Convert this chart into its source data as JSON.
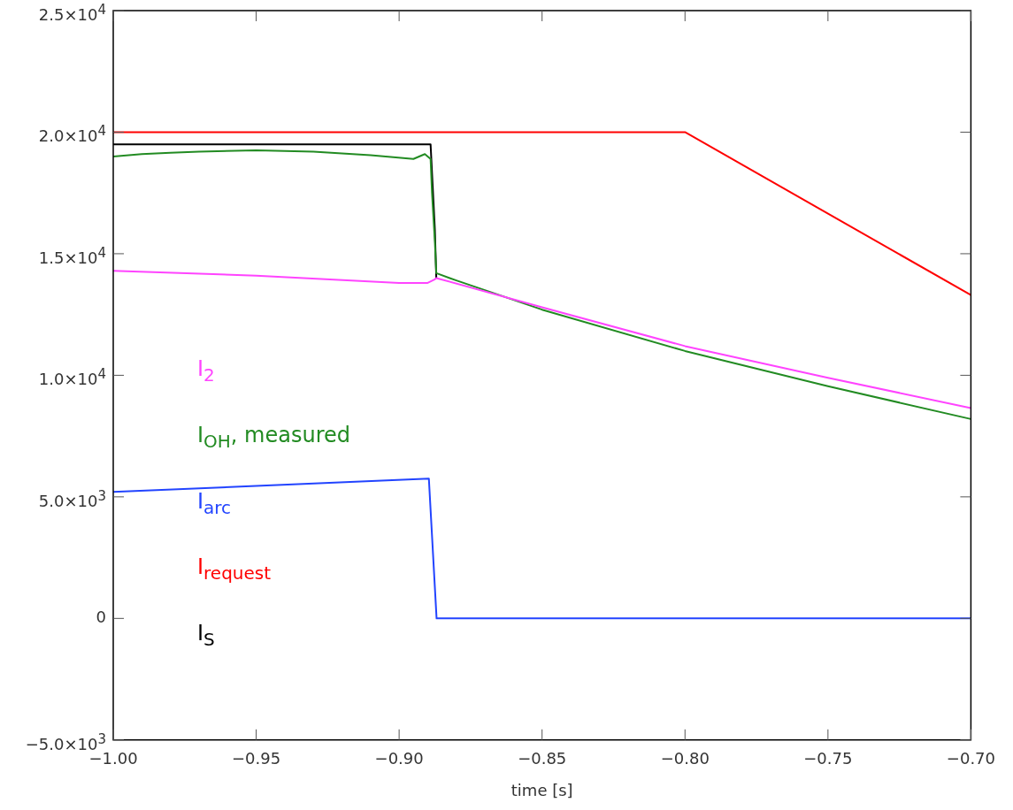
{
  "chart_data": {
    "type": "line",
    "xlabel": "time [s]",
    "legend": "left",
    "marker": "none",
    "grid": false,
    "xlim": [
      -1.0,
      -0.7
    ],
    "xticks": [
      {
        "value": -1.0,
        "label": "−1.00"
      },
      {
        "value": -0.95,
        "label": "−0.95"
      },
      {
        "value": -0.9,
        "label": "−0.90"
      },
      {
        "value": -0.85,
        "label": "−0.85"
      },
      {
        "value": -0.8,
        "label": "−0.80"
      },
      {
        "value": -0.75,
        "label": "−0.75"
      },
      {
        "value": -0.7,
        "label": "−0.70"
      }
    ],
    "ylim": [
      -5000,
      25000
    ],
    "yticks": [
      {
        "value": -5000,
        "label": "−5.0×10$^{3}$"
      },
      0,
      {
        "value": 5000,
        "label": "5.0×10$^{3}$"
      },
      {
        "value": 10000,
        "label": "1.0×10$^{4}$"
      },
      {
        "value": 15000,
        "label": "1.5×10$^{4}$"
      },
      {
        "value": 20000,
        "label": "2.0×10$^{4}$"
      },
      {
        "value": 25000,
        "label": "2.5×10$^{4}$"
      }
    ],
    "series": [
      {
        "name": "I$_{2}$",
        "color": "#ff44ff",
        "x": [
          -1.0,
          -0.95,
          -0.9,
          -0.89,
          -0.8875,
          -0.887,
          -0.85,
          -0.8,
          -0.75,
          -0.7
        ],
        "values": [
          14300,
          14100,
          13800,
          13800,
          13950,
          14000,
          12800,
          11200,
          9900,
          8650
        ]
      },
      {
        "name": "I$_{OH}$, measured",
        "color": "#228b22",
        "x": [
          -1.0,
          -0.99,
          -0.98,
          -0.97,
          -0.95,
          -0.93,
          -0.91,
          -0.895,
          -0.891,
          -0.889,
          -0.8885,
          -0.8875,
          -0.887,
          -0.88,
          -0.85,
          -0.8,
          -0.75,
          -0.7
        ],
        "values": [
          19000,
          19100,
          19150,
          19200,
          19250,
          19200,
          19050,
          18900,
          19100,
          18900,
          17500,
          15500,
          14200,
          13900,
          12700,
          11000,
          9550,
          8200
        ]
      },
      {
        "name": "I$_{arc}$",
        "color": "#2244ff",
        "x": [
          -1.0,
          -0.95,
          -0.8896,
          -0.8869,
          -0.7
        ],
        "values": [
          5200,
          5450,
          5750,
          0,
          0
        ]
      },
      {
        "name": "I$_{request}$",
        "color": "#ff0000",
        "x": [
          -1.0,
          -0.8,
          -0.7
        ],
        "values": [
          20000,
          20000,
          13300
        ]
      },
      {
        "name": "I$_{S}$",
        "color": "#000000",
        "x": [
          -1.0,
          -0.889,
          -0.8875,
          -0.887
        ],
        "values": [
          19500,
          19500,
          16000,
          14000
        ]
      }
    ]
  }
}
